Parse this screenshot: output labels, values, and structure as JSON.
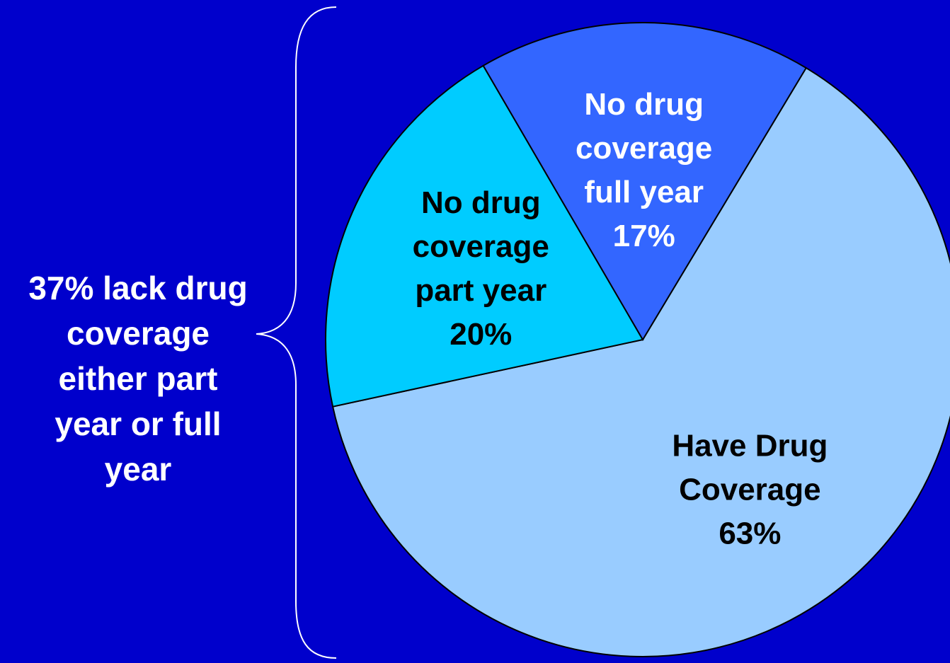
{
  "chart_data": {
    "type": "pie",
    "start_angle_deg": 301,
    "slices": [
      {
        "label_lines": [
          "Have Drug",
          "Coverage",
          "63%"
        ],
        "value": 63,
        "color": "#99CCFF",
        "text_color": "#000000"
      },
      {
        "label_lines": [
          "No drug",
          "coverage",
          "part year",
          "20%"
        ],
        "value": 20,
        "color": "#00CCFF",
        "text_color": "#000000"
      },
      {
        "label_lines": [
          "No drug",
          "coverage",
          "full year",
          "17%"
        ],
        "value": 17,
        "color": "#3366FF",
        "text_color": "#FFFFFF"
      }
    ]
  },
  "annotation": {
    "lines": [
      "37% lack drug",
      "coverage",
      "either part",
      "year or full",
      "year"
    ]
  },
  "colors": {
    "background": "#0000CC",
    "outline": "#000000",
    "annotation_text": "#FFFFFF",
    "brace": "#FFFFFF"
  }
}
